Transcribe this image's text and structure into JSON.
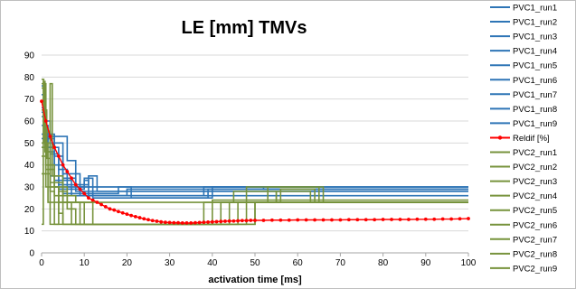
{
  "chart_data": {
    "type": "line",
    "title": "LE [mm] TMVs",
    "xlabel": "activation time [ms]",
    "ylabel": "",
    "xlim": [
      0,
      100
    ],
    "ylim": [
      0,
      90
    ],
    "x_ticks": [
      "0",
      "10",
      "20",
      "30",
      "40",
      "50",
      "60",
      "70",
      "80",
      "90",
      "100"
    ],
    "y_ticks": [
      "0",
      "10",
      "20",
      "30",
      "40",
      "50",
      "60",
      "70",
      "80",
      "90"
    ],
    "grid": "horizontal",
    "legend_position": "right",
    "series": [
      {
        "name": "PVC1_run1",
        "color": "#2e75b6",
        "points": [
          [
            0,
            62
          ],
          [
            0.8,
            62
          ],
          [
            0.8,
            48
          ],
          [
            2,
            48
          ],
          [
            2,
            40
          ],
          [
            3,
            40
          ],
          [
            3,
            30
          ],
          [
            100,
            30
          ]
        ]
      },
      {
        "name": "PVC1_run2",
        "color": "#2e75b6",
        "points": [
          [
            0,
            72
          ],
          [
            1,
            72
          ],
          [
            1,
            55
          ],
          [
            2,
            55
          ],
          [
            2,
            35
          ],
          [
            4,
            35
          ],
          [
            4,
            29
          ],
          [
            10,
            29
          ],
          [
            10,
            34
          ],
          [
            12,
            34
          ],
          [
            12,
            25
          ],
          [
            39,
            25
          ],
          [
            39,
            29
          ],
          [
            100,
            29
          ]
        ]
      },
      {
        "name": "PVC1_run3",
        "color": "#2e75b6",
        "points": [
          [
            0,
            58
          ],
          [
            1.5,
            58
          ],
          [
            1.5,
            50
          ],
          [
            3,
            50
          ],
          [
            3,
            44
          ],
          [
            5,
            44
          ],
          [
            5,
            34
          ],
          [
            8,
            34
          ],
          [
            8,
            28
          ],
          [
            100,
            28
          ]
        ]
      },
      {
        "name": "PVC1_run4",
        "color": "#2e75b6",
        "points": [
          [
            0,
            52
          ],
          [
            2,
            52
          ],
          [
            2,
            48
          ],
          [
            4,
            48
          ],
          [
            4,
            38
          ],
          [
            6,
            38
          ],
          [
            6,
            30
          ],
          [
            52,
            30
          ],
          [
            52,
            29
          ],
          [
            100,
            29
          ]
        ]
      },
      {
        "name": "PVC1_run5",
        "color": "#2e75b6",
        "points": [
          [
            0,
            48
          ],
          [
            2,
            48
          ],
          [
            2,
            53
          ],
          [
            6,
            53
          ],
          [
            6,
            42
          ],
          [
            8,
            42
          ],
          [
            8,
            30
          ],
          [
            10,
            30
          ],
          [
            10,
            33
          ],
          [
            11,
            33
          ],
          [
            11,
            26
          ],
          [
            100,
            26
          ]
        ]
      },
      {
        "name": "PVC1_run6",
        "color": "#2e75b6",
        "points": [
          [
            0,
            54
          ],
          [
            3,
            54
          ],
          [
            3,
            50
          ],
          [
            5,
            50
          ],
          [
            5,
            36
          ],
          [
            9,
            36
          ],
          [
            9,
            26
          ],
          [
            20,
            26
          ],
          [
            20,
            29
          ],
          [
            100,
            29
          ]
        ]
      },
      {
        "name": "PVC1_run7",
        "color": "#2e75b6",
        "points": [
          [
            0,
            76
          ],
          [
            0.6,
            76
          ],
          [
            0.6,
            60
          ],
          [
            2,
            60
          ],
          [
            2,
            45
          ],
          [
            4,
            45
          ],
          [
            4,
            31
          ],
          [
            11,
            31
          ],
          [
            11,
            35
          ],
          [
            13,
            35
          ],
          [
            13,
            28
          ],
          [
            100,
            28
          ]
        ]
      },
      {
        "name": "PVC1_run8",
        "color": "#2e75b6",
        "points": [
          [
            0,
            66
          ],
          [
            1,
            66
          ],
          [
            1,
            52
          ],
          [
            3,
            52
          ],
          [
            3,
            40
          ],
          [
            5,
            40
          ],
          [
            5,
            27
          ],
          [
            18,
            27
          ],
          [
            18,
            30
          ],
          [
            21,
            30
          ],
          [
            21,
            25
          ],
          [
            40,
            25
          ],
          [
            40,
            30
          ],
          [
            100,
            30
          ]
        ]
      },
      {
        "name": "PVC1_run9",
        "color": "#2e75b6",
        "points": [
          [
            0,
            64
          ],
          [
            1.2,
            64
          ],
          [
            1.2,
            46
          ],
          [
            3,
            46
          ],
          [
            3,
            33
          ],
          [
            7,
            33
          ],
          [
            7,
            26
          ],
          [
            38,
            26
          ],
          [
            38,
            30
          ],
          [
            100,
            30
          ]
        ]
      },
      {
        "name": "Reldif [%]",
        "color": "#ff0000",
        "points": [
          [
            0,
            69
          ],
          [
            1,
            60
          ],
          [
            2,
            53
          ],
          [
            3,
            48
          ],
          [
            4,
            44
          ],
          [
            5,
            40
          ],
          [
            6,
            37
          ],
          [
            7,
            34
          ],
          [
            8,
            31
          ],
          [
            9,
            29
          ],
          [
            10,
            27
          ],
          [
            11,
            25
          ],
          [
            12,
            24
          ],
          [
            13,
            23
          ],
          [
            14,
            22
          ],
          [
            15,
            21
          ],
          [
            16,
            20
          ],
          [
            17,
            19.5
          ],
          [
            18,
            18.8
          ],
          [
            19,
            18.2
          ],
          [
            20,
            17.6
          ],
          [
            21,
            17
          ],
          [
            22,
            16.5
          ],
          [
            23,
            16
          ],
          [
            24,
            15.5
          ],
          [
            25,
            15.1
          ],
          [
            26,
            14.7
          ],
          [
            27,
            14.4
          ],
          [
            28,
            14.1
          ],
          [
            29,
            13.9
          ],
          [
            30,
            13.8
          ],
          [
            31,
            13.7
          ],
          [
            32,
            13.7
          ],
          [
            33,
            13.6
          ],
          [
            34,
            13.6
          ],
          [
            35,
            13.6
          ],
          [
            36,
            13.7
          ],
          [
            37,
            13.8
          ],
          [
            38,
            13.9
          ],
          [
            39,
            14
          ],
          [
            40,
            14.1
          ],
          [
            41,
            14.2
          ],
          [
            42,
            14.3
          ],
          [
            43,
            14.4
          ],
          [
            44,
            14.5
          ],
          [
            45,
            14.5
          ],
          [
            46,
            14.6
          ],
          [
            47,
            14.7
          ],
          [
            48,
            14.7
          ],
          [
            49,
            14.8
          ],
          [
            50,
            14.8
          ],
          [
            52,
            14.8
          ],
          [
            54,
            14.9
          ],
          [
            56,
            14.9
          ],
          [
            58,
            14.9
          ],
          [
            60,
            15
          ],
          [
            62,
            15
          ],
          [
            64,
            15
          ],
          [
            66,
            15
          ],
          [
            68,
            15
          ],
          [
            70,
            15
          ],
          [
            72,
            15.1
          ],
          [
            74,
            15.1
          ],
          [
            76,
            15.1
          ],
          [
            78,
            15.1
          ],
          [
            80,
            15.2
          ],
          [
            82,
            15.2
          ],
          [
            84,
            15.2
          ],
          [
            86,
            15.2
          ],
          [
            88,
            15.3
          ],
          [
            90,
            15.3
          ],
          [
            92,
            15.3
          ],
          [
            94,
            15.4
          ],
          [
            96,
            15.4
          ],
          [
            98,
            15.5
          ],
          [
            100,
            15.6
          ]
        ]
      },
      {
        "name": "PVC2_run1",
        "color": "#77933c",
        "points": [
          [
            0,
            79
          ],
          [
            0.5,
            79
          ],
          [
            0.5,
            50
          ],
          [
            1.5,
            50
          ],
          [
            1.5,
            23
          ],
          [
            100,
            23
          ]
        ]
      },
      {
        "name": "PVC2_run2",
        "color": "#77933c",
        "points": [
          [
            0,
            77
          ],
          [
            1,
            77
          ],
          [
            1,
            36
          ],
          [
            2,
            36
          ],
          [
            2,
            13
          ],
          [
            4,
            13
          ],
          [
            4,
            28
          ],
          [
            6,
            28
          ],
          [
            6,
            20
          ],
          [
            8,
            20
          ],
          [
            8,
            13
          ],
          [
            38,
            13
          ],
          [
            38,
            23
          ],
          [
            45,
            23
          ],
          [
            45,
            28
          ],
          [
            55,
            28
          ],
          [
            55,
            23
          ],
          [
            100,
            23
          ]
        ]
      },
      {
        "name": "PVC2_run3",
        "color": "#77933c",
        "points": [
          [
            0,
            75
          ],
          [
            1,
            75
          ],
          [
            1,
            55
          ],
          [
            2,
            55
          ],
          [
            2,
            28
          ],
          [
            3,
            28
          ],
          [
            3,
            13
          ],
          [
            40,
            13
          ],
          [
            40,
            24
          ],
          [
            100,
            24
          ]
        ]
      },
      {
        "name": "PVC2_run4",
        "color": "#77933c",
        "points": [
          [
            0,
            65
          ],
          [
            1.2,
            65
          ],
          [
            1.2,
            43
          ],
          [
            2,
            43
          ],
          [
            2,
            30
          ],
          [
            4,
            30
          ],
          [
            4,
            18
          ],
          [
            5,
            18
          ],
          [
            5,
            13
          ],
          [
            42,
            13
          ],
          [
            42,
            23
          ],
          [
            48,
            23
          ],
          [
            48,
            30
          ],
          [
            65,
            30
          ],
          [
            65,
            23
          ],
          [
            100,
            23
          ]
        ]
      },
      {
        "name": "PVC2_run5",
        "color": "#77933c",
        "points": [
          [
            0,
            13
          ],
          [
            0.4,
            13
          ],
          [
            0.4,
            78
          ],
          [
            0.8,
            78
          ],
          [
            0.8,
            46
          ],
          [
            2,
            46
          ],
          [
            2,
            32
          ],
          [
            5,
            32
          ],
          [
            5,
            13
          ],
          [
            44,
            13
          ],
          [
            44,
            23
          ],
          [
            100,
            23
          ]
        ]
      },
      {
        "name": "PVC2_run6",
        "color": "#77933c",
        "points": [
          [
            0,
            50
          ],
          [
            2,
            50
          ],
          [
            2,
            77
          ],
          [
            2.5,
            77
          ],
          [
            2.5,
            35
          ],
          [
            5,
            35
          ],
          [
            5,
            23
          ],
          [
            7,
            23
          ],
          [
            7,
            13
          ],
          [
            46,
            13
          ],
          [
            46,
            23
          ],
          [
            53,
            23
          ],
          [
            53,
            30
          ],
          [
            66,
            30
          ],
          [
            66,
            23
          ],
          [
            100,
            23
          ]
        ]
      },
      {
        "name": "PVC2_run7",
        "color": "#77933c",
        "points": [
          [
            0,
            48
          ],
          [
            1,
            48
          ],
          [
            1,
            40
          ],
          [
            3,
            40
          ],
          [
            3,
            30
          ],
          [
            6,
            30
          ],
          [
            6,
            23
          ],
          [
            9,
            23
          ],
          [
            9,
            13
          ],
          [
            48,
            13
          ],
          [
            48,
            23
          ],
          [
            100,
            23
          ]
        ]
      },
      {
        "name": "PVC2_run8",
        "color": "#77933c",
        "points": [
          [
            0,
            44
          ],
          [
            1,
            44
          ],
          [
            1,
            38
          ],
          [
            3,
            38
          ],
          [
            3,
            26
          ],
          [
            8,
            26
          ],
          [
            8,
            23
          ],
          [
            10,
            23
          ],
          [
            10,
            13
          ],
          [
            50,
            13
          ],
          [
            50,
            23
          ],
          [
            55,
            23
          ],
          [
            55,
            28
          ],
          [
            63,
            28
          ],
          [
            63,
            23
          ],
          [
            100,
            23
          ]
        ]
      },
      {
        "name": "PVC2_run9",
        "color": "#77933c",
        "points": [
          [
            0,
            36
          ],
          [
            1,
            36
          ],
          [
            1,
            30
          ],
          [
            4,
            30
          ],
          [
            4,
            23
          ],
          [
            12,
            23
          ],
          [
            12,
            13
          ],
          [
            50,
            13
          ],
          [
            50,
            23
          ],
          [
            56,
            23
          ],
          [
            56,
            29
          ],
          [
            64,
            29
          ],
          [
            64,
            23
          ],
          [
            100,
            23
          ]
        ]
      }
    ]
  }
}
